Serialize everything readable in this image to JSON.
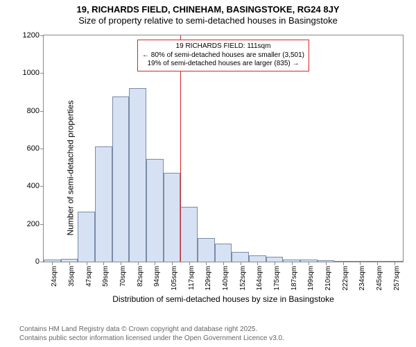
{
  "title": {
    "line1": "19, RICHARDS FIELD, CHINEHAM, BASINGSTOKE, RG24 8JY",
    "line2": "Size of property relative to semi-detached houses in Basingstoke",
    "fontsize": 13,
    "color": "#000000"
  },
  "chart": {
    "type": "histogram",
    "background_color": "#ffffff",
    "border_color": "#888888",
    "bar_fill": "#d6e2f3",
    "bar_stroke": "#7a8aa8",
    "bar_width_ratio": 1.0,
    "ylabel": "Number of semi-detached properties",
    "xlabel": "Distribution of semi-detached houses by size in Basingstoke",
    "label_fontsize": 12,
    "ylim": [
      0,
      1200
    ],
    "ytick_step": 200,
    "yticks": [
      0,
      200,
      400,
      600,
      800,
      1000,
      1200
    ],
    "tick_fontsize": 11,
    "x_categories": [
      "24sqm",
      "35sqm",
      "47sqm",
      "59sqm",
      "70sqm",
      "82sqm",
      "94sqm",
      "105sqm",
      "117sqm",
      "129sqm",
      "140sqm",
      "152sqm",
      "164sqm",
      "175sqm",
      "187sqm",
      "199sqm",
      "210sqm",
      "222sqm",
      "234sqm",
      "245sqm",
      "257sqm"
    ],
    "values": [
      10,
      15,
      265,
      610,
      875,
      920,
      545,
      470,
      290,
      125,
      95,
      50,
      35,
      25,
      10,
      10,
      8,
      5,
      5,
      5,
      3
    ],
    "reference_line": {
      "x_value_sqm": 111,
      "color": "#d62728",
      "width": 1
    },
    "annotation": {
      "line1": "19 RICHARDS FIELD: 111sqm",
      "line2": "← 80% of semi-detached houses are smaller (3,501)",
      "line3": "19% of semi-detached houses are larger (835) →",
      "border_color": "#d62728",
      "background_color": "#ffffff",
      "fontsize": 10,
      "position": "top-center"
    }
  },
  "attribution": {
    "line1": "Contains HM Land Registry data © Crown copyright and database right 2025.",
    "line2": "Contains public sector information licensed under the Open Government Licence v3.0.",
    "color": "#666666",
    "fontsize": 10
  }
}
